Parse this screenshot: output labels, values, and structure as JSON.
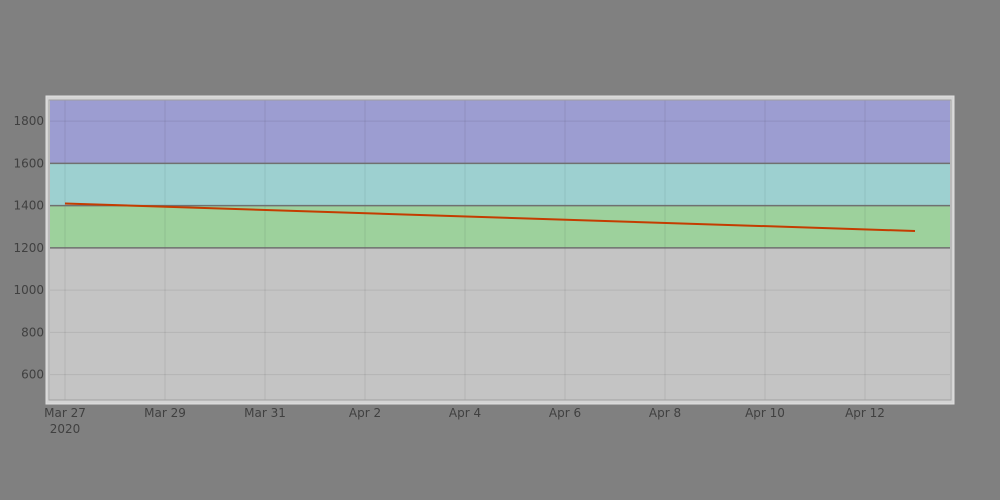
{
  "chart_data": {
    "type": "line",
    "title": "",
    "xlabel": "",
    "ylabel": "",
    "x_range": [
      "2020-03-27",
      "2020-04-13"
    ],
    "ylim": [
      480,
      1900
    ],
    "grid": true,
    "x_ticks": [
      {
        "date": "2020-03-27",
        "label": "Mar 27",
        "year_label": "2020"
      },
      {
        "date": "2020-03-29",
        "label": "Mar 29"
      },
      {
        "date": "2020-03-31",
        "label": "Mar 31"
      },
      {
        "date": "2020-04-02",
        "label": "Apr 2"
      },
      {
        "date": "2020-04-04",
        "label": "Apr 4"
      },
      {
        "date": "2020-04-06",
        "label": "Apr 6"
      },
      {
        "date": "2020-04-08",
        "label": "Apr 8"
      },
      {
        "date": "2020-04-10",
        "label": "Apr 10"
      },
      {
        "date": "2020-04-12",
        "label": "Apr 12"
      }
    ],
    "y_ticks": [
      600,
      800,
      1000,
      1200,
      1400,
      1600,
      1800
    ],
    "bands": [
      {
        "from": 480,
        "to": 1200,
        "color": "#c4c4c4"
      },
      {
        "from": 1200,
        "to": 1400,
        "color": "#9dd19c"
      },
      {
        "from": 1400,
        "to": 1600,
        "color": "#9dd0d0"
      },
      {
        "from": 1600,
        "to": 1900,
        "color": "#9c9dd1"
      }
    ],
    "band_boundaries": [
      1200,
      1400,
      1600
    ],
    "series": [
      {
        "color": "#c43c00",
        "points": [
          {
            "x": "2020-03-27",
            "y": 1410
          },
          {
            "x": "2020-04-13",
            "y": 1280
          }
        ]
      }
    ]
  }
}
